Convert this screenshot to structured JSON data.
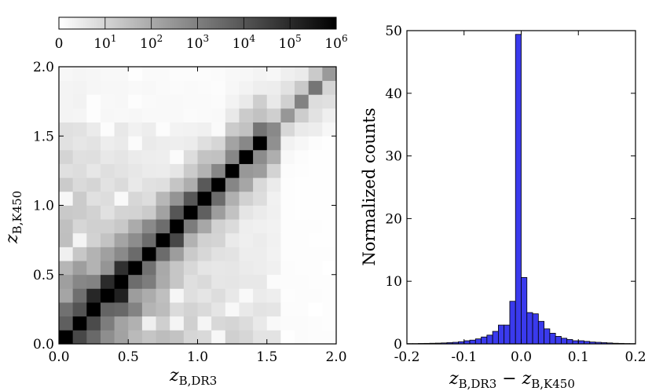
{
  "chart_data": [
    {
      "type": "heatmap",
      "xlabel": "z",
      "xlabel_sub": "B,DR3",
      "ylabel": "z",
      "ylabel_sub": "B,K450",
      "xlim": [
        0.0,
        2.0
      ],
      "ylim": [
        0.0,
        2.0
      ],
      "xticks": [
        "0.0",
        "0.5",
        "1.0",
        "1.5",
        "2.0"
      ],
      "yticks": [
        "0.0",
        "0.5",
        "1.0",
        "1.5",
        "2.0"
      ],
      "grid": false,
      "bins": 20,
      "colorbar": {
        "scale": "log",
        "colormap": "Greys",
        "ticks": [
          "0",
          "10",
          "10",
          "10",
          "10",
          "10",
          "10"
        ],
        "tick_exponents": [
          "",
          "1",
          "2",
          "3",
          "4",
          "5",
          "6"
        ]
      }
    },
    {
      "type": "bar",
      "xlabel": "z",
      "xlabel_parts": [
        {
          "base": "z",
          "sub": "B,DR3"
        },
        {
          "op": " − "
        },
        {
          "base": "z",
          "sub": "B,K450"
        }
      ],
      "ylabel": "Normalized counts",
      "xlim": [
        -0.2,
        0.2
      ],
      "ylim": [
        0,
        50
      ],
      "xticks": [
        "-0.2",
        "-0.1",
        "0.0",
        "0.1",
        "0.2"
      ],
      "yticks": [
        "0",
        "10",
        "20",
        "30",
        "40",
        "50"
      ],
      "bar_color": "#3a3aed",
      "bin_width": 0.01,
      "x": [
        -0.195,
        -0.185,
        -0.175,
        -0.165,
        -0.155,
        -0.145,
        -0.135,
        -0.125,
        -0.115,
        -0.105,
        -0.095,
        -0.085,
        -0.075,
        -0.065,
        -0.055,
        -0.045,
        -0.035,
        -0.025,
        -0.015,
        -0.005,
        0.005,
        0.015,
        0.025,
        0.035,
        0.045,
        0.055,
        0.065,
        0.075,
        0.085,
        0.095,
        0.105,
        0.115,
        0.125,
        0.135,
        0.145,
        0.155,
        0.165,
        0.175,
        0.185,
        0.195
      ],
      "values": [
        0.05,
        0.05,
        0.07,
        0.08,
        0.1,
        0.12,
        0.15,
        0.2,
        0.25,
        0.35,
        0.5,
        0.6,
        0.8,
        1.1,
        1.4,
        2.0,
        3.0,
        3.0,
        6.8,
        49.4,
        10.6,
        5.0,
        4.8,
        3.6,
        2.4,
        1.7,
        1.2,
        0.9,
        0.7,
        0.5,
        0.5,
        0.4,
        0.3,
        0.25,
        0.2,
        0.15,
        0.1,
        0.08,
        0.06,
        0.05
      ],
      "grid": false
    }
  ]
}
